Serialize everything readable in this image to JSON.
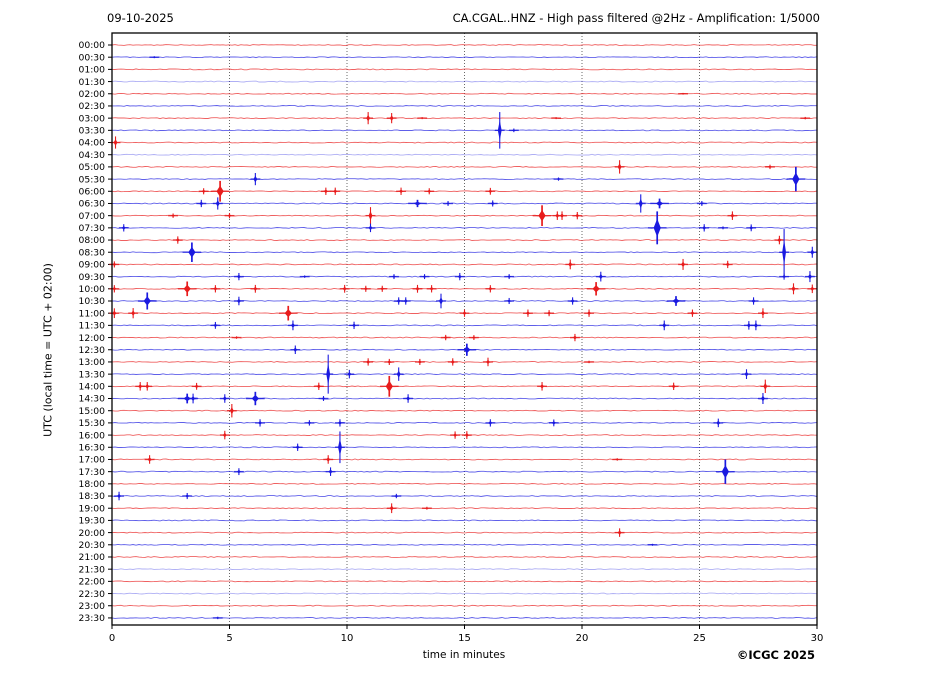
{
  "header": {
    "date_label": "09-10-2025",
    "title": "CA.CGAL..HNZ - High pass filtered @2Hz - Amplification: 1/5000"
  },
  "footer": {
    "copyright": "©ICGC 2025"
  },
  "chart_data": {
    "type": "line",
    "subtype": "helicorder-dayplot",
    "title": "CA.CGAL..HNZ - High pass filtered @2Hz - Amplification: 1/5000",
    "date": "09-10-2025",
    "xlabel": "time in minutes",
    "ylabel": "UTC (local time = UTC + 02:00)",
    "xlim": [
      0,
      30
    ],
    "x_ticks": [
      0,
      5,
      10,
      15,
      20,
      25,
      30
    ],
    "grid": "vertical dotted lines every 5 minutes",
    "legend": "none",
    "colors": {
      "red": "#e81c1c",
      "blue": "#1a1ae0",
      "frame": "#000000",
      "grid": "#444444"
    },
    "row_color_cycle": [
      "red",
      "blue"
    ],
    "rows": [
      "00:00",
      "00:30",
      "01:00",
      "01:30",
      "02:00",
      "02:30",
      "03:00",
      "03:30",
      "04:00",
      "04:30",
      "05:00",
      "05:30",
      "06:00",
      "06:30",
      "07:00",
      "07:30",
      "08:00",
      "08:30",
      "09:00",
      "09:30",
      "10:00",
      "10:30",
      "11:00",
      "11:30",
      "12:00",
      "12:30",
      "13:00",
      "13:30",
      "14:00",
      "14:30",
      "15:00",
      "15:30",
      "16:00",
      "16:30",
      "17:00",
      "17:30",
      "18:00",
      "18:30",
      "19:00",
      "19:30",
      "20:00",
      "20:30",
      "21:00",
      "21:30",
      "22:00",
      "22:30",
      "23:00",
      "23:30"
    ],
    "faint_rows": [
      "01:30",
      "04:30",
      "21:30",
      "22:30"
    ],
    "events_columns": [
      "row_time",
      "minute",
      "relative_amplitude",
      "wide"
    ],
    "events": [
      [
        "00:30",
        1.8,
        0.08,
        0
      ],
      [
        "02:00",
        24.3,
        0.07,
        0
      ],
      [
        "03:00",
        10.9,
        0.5,
        0
      ],
      [
        "03:00",
        11.9,
        0.42,
        0
      ],
      [
        "03:00",
        13.2,
        0.08,
        0
      ],
      [
        "03:00",
        18.9,
        0.08,
        0
      ],
      [
        "03:00",
        29.5,
        0.1,
        0
      ],
      [
        "03:30",
        16.5,
        1.5,
        0
      ],
      [
        "03:30",
        17.1,
        0.15,
        0
      ],
      [
        "04:00",
        0.15,
        0.5,
        0
      ],
      [
        "05:00",
        21.6,
        0.55,
        0
      ],
      [
        "05:00",
        28.0,
        0.18,
        0
      ],
      [
        "05:30",
        6.1,
        0.5,
        0
      ],
      [
        "05:30",
        19.0,
        0.13,
        0
      ],
      [
        "05:30",
        29.1,
        1.0,
        1
      ],
      [
        "06:00",
        3.9,
        0.25,
        0
      ],
      [
        "06:00",
        4.6,
        0.85,
        1
      ],
      [
        "06:00",
        9.1,
        0.3,
        0
      ],
      [
        "06:00",
        9.5,
        0.3,
        0
      ],
      [
        "06:00",
        12.3,
        0.3,
        0
      ],
      [
        "06:00",
        13.5,
        0.25,
        0
      ],
      [
        "06:00",
        16.1,
        0.28,
        0
      ],
      [
        "06:30",
        3.8,
        0.3,
        0
      ],
      [
        "06:30",
        4.5,
        0.5,
        0
      ],
      [
        "06:30",
        13.0,
        0.3,
        1
      ],
      [
        "06:30",
        14.3,
        0.2,
        0
      ],
      [
        "06:30",
        16.2,
        0.25,
        0
      ],
      [
        "06:30",
        22.5,
        0.75,
        0
      ],
      [
        "06:30",
        23.3,
        0.4,
        1
      ],
      [
        "06:30",
        25.1,
        0.2,
        0
      ],
      [
        "07:00",
        2.6,
        0.18,
        0
      ],
      [
        "07:00",
        5.0,
        0.22,
        0
      ],
      [
        "07:00",
        11.0,
        0.7,
        0
      ],
      [
        "07:00",
        18.3,
        0.85,
        1
      ],
      [
        "07:00",
        18.95,
        0.35,
        0
      ],
      [
        "07:00",
        19.15,
        0.35,
        0
      ],
      [
        "07:00",
        19.8,
        0.3,
        0
      ],
      [
        "07:00",
        26.4,
        0.35,
        0
      ],
      [
        "07:30",
        0.5,
        0.3,
        0
      ],
      [
        "07:30",
        11.0,
        0.35,
        0
      ],
      [
        "07:30",
        23.2,
        1.35,
        1
      ],
      [
        "07:30",
        25.2,
        0.3,
        0
      ],
      [
        "07:30",
        26.0,
        0.12,
        0
      ],
      [
        "07:30",
        27.2,
        0.28,
        0
      ],
      [
        "08:00",
        2.8,
        0.3,
        0
      ],
      [
        "08:00",
        28.4,
        0.35,
        0
      ],
      [
        "08:30",
        3.4,
        0.8,
        1
      ],
      [
        "08:30",
        28.6,
        1.9,
        0
      ],
      [
        "08:30",
        29.8,
        0.45,
        0
      ],
      [
        "09:00",
        0.1,
        0.25,
        0
      ],
      [
        "09:00",
        19.5,
        0.4,
        0
      ],
      [
        "09:00",
        24.3,
        0.45,
        0
      ],
      [
        "09:00",
        26.2,
        0.3,
        0
      ],
      [
        "09:30",
        5.4,
        0.3,
        0
      ],
      [
        "09:30",
        8.2,
        0.1,
        0
      ],
      [
        "09:30",
        12.0,
        0.2,
        0
      ],
      [
        "09:30",
        13.3,
        0.2,
        0
      ],
      [
        "09:30",
        14.8,
        0.3,
        0
      ],
      [
        "09:30",
        16.9,
        0.2,
        0
      ],
      [
        "09:30",
        20.8,
        0.4,
        0
      ],
      [
        "09:30",
        28.6,
        0.25,
        0
      ],
      [
        "09:30",
        29.7,
        0.45,
        0
      ],
      [
        "10:00",
        0.1,
        0.3,
        0
      ],
      [
        "10:00",
        3.2,
        0.6,
        1
      ],
      [
        "10:00",
        4.4,
        0.3,
        0
      ],
      [
        "10:00",
        6.1,
        0.32,
        0
      ],
      [
        "10:00",
        9.9,
        0.32,
        0
      ],
      [
        "10:00",
        10.8,
        0.25,
        0
      ],
      [
        "10:00",
        11.5,
        0.25,
        0
      ],
      [
        "10:00",
        13.0,
        0.32,
        0
      ],
      [
        "10:00",
        13.6,
        0.3,
        0
      ],
      [
        "10:00",
        16.1,
        0.3,
        0
      ],
      [
        "10:00",
        20.6,
        0.55,
        1
      ],
      [
        "10:00",
        29.0,
        0.45,
        0
      ],
      [
        "10:00",
        29.8,
        0.35,
        0
      ],
      [
        "10:30",
        1.5,
        0.7,
        1
      ],
      [
        "10:30",
        5.4,
        0.35,
        0
      ],
      [
        "10:30",
        12.2,
        0.3,
        0
      ],
      [
        "10:30",
        12.5,
        0.3,
        0
      ],
      [
        "10:30",
        14.0,
        0.6,
        0
      ],
      [
        "10:30",
        16.9,
        0.25,
        0
      ],
      [
        "10:30",
        19.6,
        0.3,
        0
      ],
      [
        "10:30",
        24.0,
        0.4,
        1
      ],
      [
        "10:30",
        27.3,
        0.3,
        0
      ],
      [
        "11:00",
        0.1,
        0.4,
        0
      ],
      [
        "11:00",
        0.9,
        0.42,
        0
      ],
      [
        "11:00",
        7.5,
        0.6,
        1
      ],
      [
        "11:00",
        15.0,
        0.3,
        0
      ],
      [
        "11:00",
        17.7,
        0.3,
        0
      ],
      [
        "11:00",
        18.6,
        0.25,
        0
      ],
      [
        "11:00",
        20.3,
        0.3,
        0
      ],
      [
        "11:00",
        24.7,
        0.3,
        0
      ],
      [
        "11:00",
        27.7,
        0.4,
        0
      ],
      [
        "11:30",
        4.4,
        0.28,
        0
      ],
      [
        "11:30",
        7.7,
        0.4,
        0
      ],
      [
        "11:30",
        10.3,
        0.3,
        0
      ],
      [
        "11:30",
        23.5,
        0.4,
        0
      ],
      [
        "11:30",
        27.1,
        0.35,
        0
      ],
      [
        "11:30",
        27.4,
        0.4,
        0
      ],
      [
        "12:00",
        5.3,
        0.1,
        0
      ],
      [
        "12:00",
        14.2,
        0.22,
        0
      ],
      [
        "12:00",
        15.4,
        0.2,
        0
      ],
      [
        "12:00",
        19.7,
        0.3,
        0
      ],
      [
        "12:30",
        7.8,
        0.35,
        0
      ],
      [
        "12:30",
        15.1,
        0.5,
        1
      ],
      [
        "13:00",
        10.9,
        0.3,
        0
      ],
      [
        "13:00",
        11.8,
        0.25,
        0
      ],
      [
        "13:00",
        13.1,
        0.25,
        0
      ],
      [
        "13:00",
        14.5,
        0.3,
        0
      ],
      [
        "13:00",
        16.0,
        0.35,
        0
      ],
      [
        "13:00",
        20.3,
        0.1,
        0
      ],
      [
        "13:30",
        9.2,
        1.6,
        0
      ],
      [
        "13:30",
        10.1,
        0.35,
        0
      ],
      [
        "13:30",
        12.2,
        0.55,
        0
      ],
      [
        "13:30",
        27.0,
        0.4,
        0
      ],
      [
        "14:00",
        1.2,
        0.35,
        0
      ],
      [
        "14:00",
        1.5,
        0.35,
        0
      ],
      [
        "14:00",
        3.6,
        0.28,
        0
      ],
      [
        "14:00",
        8.8,
        0.3,
        0
      ],
      [
        "14:00",
        11.8,
        0.85,
        1
      ],
      [
        "14:00",
        18.3,
        0.35,
        0
      ],
      [
        "14:00",
        23.9,
        0.3,
        0
      ],
      [
        "14:00",
        27.8,
        0.55,
        0
      ],
      [
        "14:30",
        3.2,
        0.4,
        1
      ],
      [
        "14:30",
        3.45,
        0.4,
        0
      ],
      [
        "14:30",
        4.8,
        0.35,
        0
      ],
      [
        "14:30",
        6.1,
        0.55,
        1
      ],
      [
        "14:30",
        9.0,
        0.2,
        0
      ],
      [
        "14:30",
        12.6,
        0.35,
        0
      ],
      [
        "14:30",
        27.7,
        0.45,
        0
      ],
      [
        "15:00",
        5.1,
        0.55,
        0
      ],
      [
        "15:30",
        6.3,
        0.3,
        0
      ],
      [
        "15:30",
        8.4,
        0.22,
        0
      ],
      [
        "15:30",
        9.7,
        0.3,
        0
      ],
      [
        "15:30",
        16.1,
        0.3,
        0
      ],
      [
        "15:30",
        18.8,
        0.28,
        0
      ],
      [
        "15:30",
        25.8,
        0.35,
        0
      ],
      [
        "16:00",
        4.8,
        0.35,
        0
      ],
      [
        "16:00",
        14.6,
        0.3,
        0
      ],
      [
        "16:00",
        15.1,
        0.32,
        0
      ],
      [
        "16:30",
        7.9,
        0.3,
        0
      ],
      [
        "16:30",
        9.7,
        1.3,
        0
      ],
      [
        "17:00",
        1.6,
        0.35,
        0
      ],
      [
        "17:00",
        9.2,
        0.35,
        0
      ],
      [
        "17:00",
        21.5,
        0.1,
        0
      ],
      [
        "17:30",
        5.4,
        0.28,
        0
      ],
      [
        "17:30",
        9.3,
        0.35,
        0
      ],
      [
        "17:30",
        26.1,
        1.0,
        1
      ],
      [
        "18:30",
        0.3,
        0.35,
        0
      ],
      [
        "18:30",
        3.2,
        0.25,
        0
      ],
      [
        "18:30",
        12.1,
        0.18,
        0
      ],
      [
        "19:00",
        11.9,
        0.4,
        0
      ],
      [
        "19:00",
        13.4,
        0.12,
        0
      ],
      [
        "20:00",
        21.6,
        0.35,
        0
      ],
      [
        "20:30",
        23.0,
        0.08,
        0
      ],
      [
        "23:30",
        4.5,
        0.1,
        0
      ]
    ]
  }
}
